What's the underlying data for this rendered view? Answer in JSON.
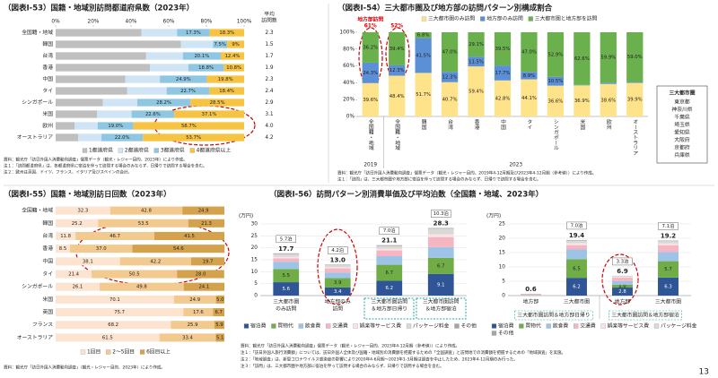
{
  "page_number": "13",
  "chart_data": [
    {
      "type": "bar",
      "orientation": "horizontal",
      "title": "（図表Ⅰ-53）国籍・地域別訪問都道府県数（2023年）",
      "categories": [
        "全国籍・地域",
        "韓国",
        "台湾",
        "香港",
        "中国",
        "タイ",
        "シンガポール",
        "米国",
        "欧州",
        "オーストラリア"
      ],
      "series": [
        {
          "name": "1都道府県",
          "color": "#bfbfbf",
          "values": [
            45.5,
            66.5,
            48,
            50,
            37,
            38,
            25,
            22,
            10,
            12
          ]
        },
        {
          "name": "2都道府県",
          "color": "#cfe4f5",
          "values": [
            18.9,
            17,
            19.5,
            20.4,
            18.3,
            20.9,
            18.3,
            18.3,
            12.3,
            12.3
          ]
        },
        {
          "name": "3都道府県",
          "color": "#8fc7e3",
          "values": [
            17.3,
            7.5,
            20.1,
            18.8,
            24.9,
            22.7,
            28.2,
            22.6,
            19.0,
            22.0
          ],
          "value_labels": [
            "17.3%",
            "7.5%",
            "20.1%",
            "18.8%",
            "24.9%",
            "22.7%",
            "28.2%",
            "22.6%",
            "19.0%",
            "22.0%"
          ]
        },
        {
          "name": "4都道府県以上",
          "color": "#f6c343",
          "values": [
            18.3,
            9,
            12.4,
            10.8,
            19.8,
            18.4,
            28.5,
            37.1,
            58.7,
            53.7
          ],
          "value_labels": [
            "18.3%",
            "9%",
            "12.4%",
            "10.8%",
            "19.8%",
            "18.4%",
            "28.5%",
            "37.1%",
            "58.7%",
            "53.7%"
          ]
        }
      ],
      "xlim": [
        0,
        100
      ],
      "xticks": [
        {
          "value": 0,
          "label": "0%"
        },
        {
          "value": 20,
          "label": "20%"
        },
        {
          "value": 40,
          "label": "40%"
        },
        {
          "value": 60,
          "label": "60%"
        },
        {
          "value": 80,
          "label": "80%"
        },
        {
          "value": 100,
          "label": "100%"
        }
      ],
      "average_visits": {
        "header": [
          "平均",
          "訪問数"
        ],
        "values": [
          2.3,
          1.5,
          1.7,
          1.9,
          2.3,
          2.4,
          2.9,
          3.1,
          4.0,
          4.2
        ],
        "value_labels": [
          "2.3",
          "1.5",
          "1.7",
          "1.9",
          "2.3",
          "2.4",
          "2.9",
          "3.1",
          "4.0",
          "4.2"
        ]
      },
      "notes": [
        "資料：観光庁「訪日外国人消費動向調査」個票データ（観光・レジャー目的、2023年）により作成。",
        "注１：「訪問都道府県」は、各都道府県に宿泊を伴って訪問する場合のみならず、日帰りで訪問する場合を含む。",
        "注２：欧州は英国、ドイツ、フランス、イタリア及びスペインの合計。"
      ]
    },
    {
      "type": "bar",
      "orientation": "vertical",
      "title": "（図表Ⅰ-54）三大都市圏及び地方部の訪問パターン別構成割合",
      "groups": [
        {
          "label": "2019",
          "categories": [
            "全国籍・地域"
          ]
        },
        {
          "label": "2023",
          "categories": [
            "全国籍・地域",
            "韓国",
            "台湾",
            "香港",
            "中国",
            "タイ",
            "シンガポール",
            "米国",
            "欧州",
            "オーストラリア"
          ]
        }
      ],
      "vertical_labels": true,
      "series": [
        {
          "name": "三大都市圏のみ訪問",
          "color": "#ffe38a",
          "values": [
            39.6,
            48.4,
            51.7,
            40.7,
            59.4,
            42.8,
            44.1,
            36.6,
            36.9,
            38.6,
            39.9
          ],
          "value_labels": [
            "39.6%",
            "48.4%",
            "51.7%",
            "40.7%",
            "59.4%",
            "42.8%",
            "44.1%",
            "36.6%",
            "36.9%",
            "38.6%",
            "39.9%"
          ]
        },
        {
          "name": "地方部のみ訪問",
          "color": "#5b8fd6",
          "values": [
            24.3,
            12.3,
            41.5,
            12.3,
            11.5,
            17.7,
            8.9,
            10.5,
            0.5,
            1.5,
            1.1
          ],
          "value_labels": [
            "24.3%",
            "12.3%",
            "41.5%",
            "12.3%",
            "11.5%",
            "17.7%",
            "8.9%",
            "10.5%",
            null,
            null,
            null
          ]
        },
        {
          "name": "三大都市圏と地方部を訪問",
          "color": "#6ab04c",
          "values": [
            36.2,
            39.4,
            6.8,
            47.0,
            29.1,
            39.5,
            47.0,
            52.9,
            62.6,
            59.9,
            59.0
          ],
          "value_labels": [
            "36.2%",
            "39.4%",
            "6.8%",
            "47.0%",
            "29.1%",
            "39.5%",
            "47.0%",
            "52.9%",
            "62.6%",
            "59.9%",
            "59.0%"
          ]
        }
      ],
      "ylim": [
        0,
        100
      ],
      "yticks": [
        {
          "value": 0,
          "label": "0%"
        },
        {
          "value": 20,
          "label": "20%"
        },
        {
          "value": 40,
          "label": "40%"
        },
        {
          "value": 60,
          "label": "60%"
        },
        {
          "value": 80,
          "label": "80%"
        },
        {
          "value": 100,
          "label": "100%"
        }
      ],
      "annotations": [
        "地方部訪問",
        "61%",
        "52%"
      ],
      "side_box": {
        "title": "三大都市圏",
        "items": [
          "東京都",
          "神奈川県",
          "千葉県",
          "埼玉県",
          "愛知県",
          "大阪府",
          "京都府",
          "兵庫県"
        ]
      },
      "notes": [
        "資料：観光庁「訪日外国人消費動向調査」個票データ（観光・レジャー目的、2019年4-12月期及び2023年4-12月期（参考値））により作成。",
        "注１：「訪問」は、三大都市圏や地方部に宿泊を伴って訪問する場合のみならず、日帰りで訪問する場合を含む。"
      ]
    },
    {
      "type": "bar",
      "orientation": "horizontal",
      "title": "（図表Ⅰ-55）国籍・地域別訪日回数（2023年）",
      "categories": [
        "全国籍・地域",
        "韓国",
        "台湾",
        "香港",
        "中国",
        "タイ",
        "シンガポール",
        "米国",
        "英国",
        "フランス",
        "オーストラリア"
      ],
      "series": [
        {
          "name": "1回目",
          "color": "#fce4d0",
          "values": [
            32.3,
            25.2,
            11.8,
            8.5,
            38.1,
            21.4,
            26.1,
            70.1,
            75.7,
            68.2,
            61.5
          ],
          "value_labels": [
            "32.3",
            "25.2",
            "11.8",
            "8.5",
            "38.1",
            "21.4",
            "26.1",
            "70.1",
            "75.7",
            "68.2",
            "61.5"
          ]
        },
        {
          "name": "2〜5回目",
          "color": "#f2c98f",
          "values": [
            42.8,
            53.5,
            46.7,
            37.0,
            42.2,
            50.5,
            49.8,
            24.9,
            17.6,
            25.9,
            33.4
          ],
          "value_labels": [
            "42.8",
            "53.5",
            "46.7",
            "37.0",
            "42.2",
            "50.5",
            "49.8",
            "24.9",
            "17.6",
            "25.9",
            "33.4"
          ]
        },
        {
          "name": "6回目以上",
          "color": "#d4a24c",
          "values": [
            24.9,
            21.3,
            41.5,
            54.6,
            19.7,
            28.0,
            24.1,
            5.0,
            6.7,
            5.9,
            5.1
          ],
          "value_labels": [
            "24.9",
            "21.3",
            "41.5",
            "54.6",
            "19.7",
            "28.0",
            "24.1",
            "5.0",
            "6.7",
            "5.9",
            "5.1"
          ]
        }
      ],
      "xlim": [
        0,
        100
      ],
      "notes": [
        "資料：観光庁「訪日外国人消費動向調査」（観光・レジャー目的、2023年）により作成。"
      ]
    },
    {
      "type": "bar",
      "orientation": "vertical",
      "title": "（図表Ⅰ-56）訪問パターン別消費単価及び平均泊数（全国籍・地域、2023年）",
      "unit": "(万円)",
      "categories": [
        [
          "三大都市圏",
          "のみ訪問"
        ],
        [
          "地方部のみ",
          "訪問"
        ],
        [
          "三大都市圏訪問",
          "＆地方部日帰り"
        ],
        [
          "三大都市圏訪問",
          "＆地方部宿泊"
        ]
      ],
      "series": [
        {
          "name": "宿泊費",
          "color": "#2f5597",
          "values": [
            5.6,
            3.4,
            6.2,
            9.1
          ],
          "value_labels": [
            "5.6",
            "3.4",
            "6.2",
            "9.1"
          ]
        },
        {
          "name": "買物代",
          "color": "#70ad47",
          "values": [
            5.5,
            3.9,
            6.7,
            6.7
          ],
          "value_labels": [
            "5.5",
            "3.9",
            "6.7",
            "6.7"
          ]
        },
        {
          "name": "飲食費",
          "color": "#9dc3e6",
          "values": [
            3.0,
            2.3,
            3.6,
            4.5
          ]
        },
        {
          "name": "交通費",
          "color": "#f4b6c2",
          "values": [
            1.5,
            1.8,
            2.4,
            4.2
          ]
        },
        {
          "name": "娯楽等サービス費",
          "color": "#fde2e4",
          "values": [
            0.6,
            0.5,
            0.8,
            1.2
          ]
        },
        {
          "name": "パッケージ料金",
          "color": "#d9d9d9",
          "values": [
            1.2,
            0.9,
            1.1,
            2.3
          ]
        },
        {
          "name": "その他",
          "color": "#a5a5a5",
          "values": [
            0.3,
            0.2,
            0.3,
            0.3
          ]
        }
      ],
      "totals": [
        17.7,
        13.0,
        21.1,
        28.3
      ],
      "totals_labels": [
        "17.7",
        "13.0",
        "21.1",
        "28.3"
      ],
      "nights": {
        "values": [
          5.7,
          4.2,
          7.0,
          10.3
        ],
        "value_labels": [
          "5.7泊",
          "4.2泊",
          "7.0泊",
          "10.3泊"
        ]
      },
      "ylim": [
        0,
        30
      ],
      "yticks": [
        0,
        5,
        10,
        15,
        20,
        25,
        30
      ],
      "grid": true,
      "notes": [
        "資料：観光庁「訪日外国人消費動向調査」個票データ（観光・レジャー目的、2023年4-12月期（参考値））により作成。",
        "注１：「訪日外国人旅行消費額」については、訪日外国人全体及び国籍・地域別の消費額を把握するための「全国調査」と訪問地での消費額を把握するための「地域調査」を実施。",
        "注２：「地域調査」は、新型コロナウイルス感染症の影響により2020年4-6月期〜2023年1-3月期は調査を中止したため、2023年4-12月期のみ行った。",
        "注３：「訪問」は、三大都市圏や地方部に宿泊を伴って訪問する場合のみならず、日帰りで訪問する場合を含む。"
      ]
    },
    {
      "type": "bar",
      "orientation": "vertical",
      "unit": "(万円)",
      "groups": [
        {
          "label": "三大都市圏訪問＆地方部日帰り",
          "categories": [
            "地方部",
            "三大都市圏"
          ]
        },
        {
          "label": "三大都市圏訪問＆地方部宿泊",
          "categories": [
            "地方部",
            "三大都市圏"
          ]
        }
      ],
      "series": [
        {
          "name": "宿泊費",
          "color": "#2f5597",
          "values": [
            0,
            6.2,
            2.8,
            6.3
          ],
          "value_labels": [
            null,
            "6.2",
            "2.8",
            "6.3"
          ]
        },
        {
          "name": "買物代",
          "color": "#70ad47",
          "values": [
            0,
            6.5,
            1.0,
            5.7
          ],
          "value_labels": [
            null,
            "6.5",
            "1.0",
            "5.7"
          ]
        },
        {
          "name": "飲食費",
          "color": "#9dc3e6",
          "values": [
            0.2,
            3.4,
            1.3,
            3.2
          ]
        },
        {
          "name": "交通費",
          "color": "#f4b6c2",
          "values": [
            0.3,
            1.5,
            1.2,
            2.4
          ]
        },
        {
          "name": "娯楽等サービス費",
          "color": "#fde2e4",
          "values": [
            0,
            0.7,
            0.3,
            0.6
          ]
        },
        {
          "name": "パッケージ料金",
          "color": "#d9d9d9",
          "values": [
            0,
            0.9,
            0.2,
            0.8
          ]
        },
        {
          "name": "その他",
          "color": "#a5a5a5",
          "values": [
            0.1,
            0.2,
            0.1,
            0.2
          ]
        }
      ],
      "totals": [
        0.6,
        19.4,
        6.9,
        19.2
      ],
      "totals_labels": [
        "0.6",
        "19.4",
        "6.9",
        "19.2"
      ],
      "nights": {
        "values": [
          null,
          7.0,
          3.3,
          7.1
        ],
        "value_labels": [
          null,
          "7.0泊",
          "3.3泊",
          "7.1泊"
        ]
      },
      "ylim": [
        0,
        25
      ],
      "yticks": [
        0,
        5,
        10,
        15,
        20,
        25
      ],
      "grid": true
    }
  ]
}
